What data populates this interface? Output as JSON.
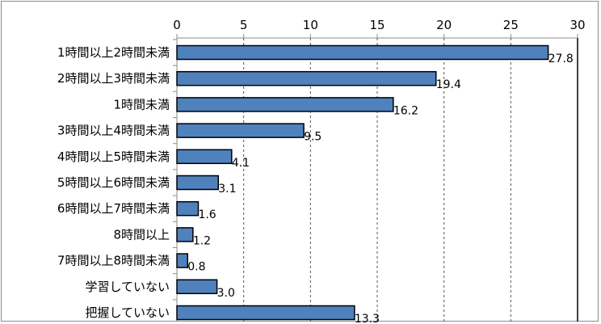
{
  "chart_data": {
    "type": "bar",
    "orientation": "horizontal",
    "categories": [
      "1時間以上2時間未満",
      "2時間以上3時間未満",
      "1時間未満",
      "3時間以上4時間未満",
      "4時間以上5時間未満",
      "5時間以上6時間未満",
      "6時間以上7時間未満",
      "8時間以上",
      "7時間以上8時間未満",
      "学習していない",
      "把握していない"
    ],
    "values": [
      27.8,
      19.4,
      16.2,
      9.5,
      4.1,
      3.1,
      1.6,
      1.2,
      0.8,
      3.0,
      13.3
    ],
    "value_labels": [
      "27.8",
      "19.4",
      "16.2",
      "9.5",
      "4.1",
      "3.1",
      "1.6",
      "1.2",
      "0.8",
      "3.0",
      "13.3"
    ],
    "xlim": [
      0,
      30
    ],
    "x_ticks": [
      0,
      5,
      10,
      15,
      20,
      25,
      30
    ],
    "x_tick_labels": [
      "0",
      "5",
      "10",
      "15",
      "20",
      "25",
      "30"
    ],
    "x_axis_position": "top",
    "grid": "vertical dashed",
    "title": "",
    "xlabel": "",
    "ylabel": "",
    "colors": {
      "bar_fill": "#4f81bd",
      "bar_stroke": "#000000",
      "grid": "#555555",
      "axis": "#8c8c8c",
      "frame": "#8c8c8c"
    }
  }
}
